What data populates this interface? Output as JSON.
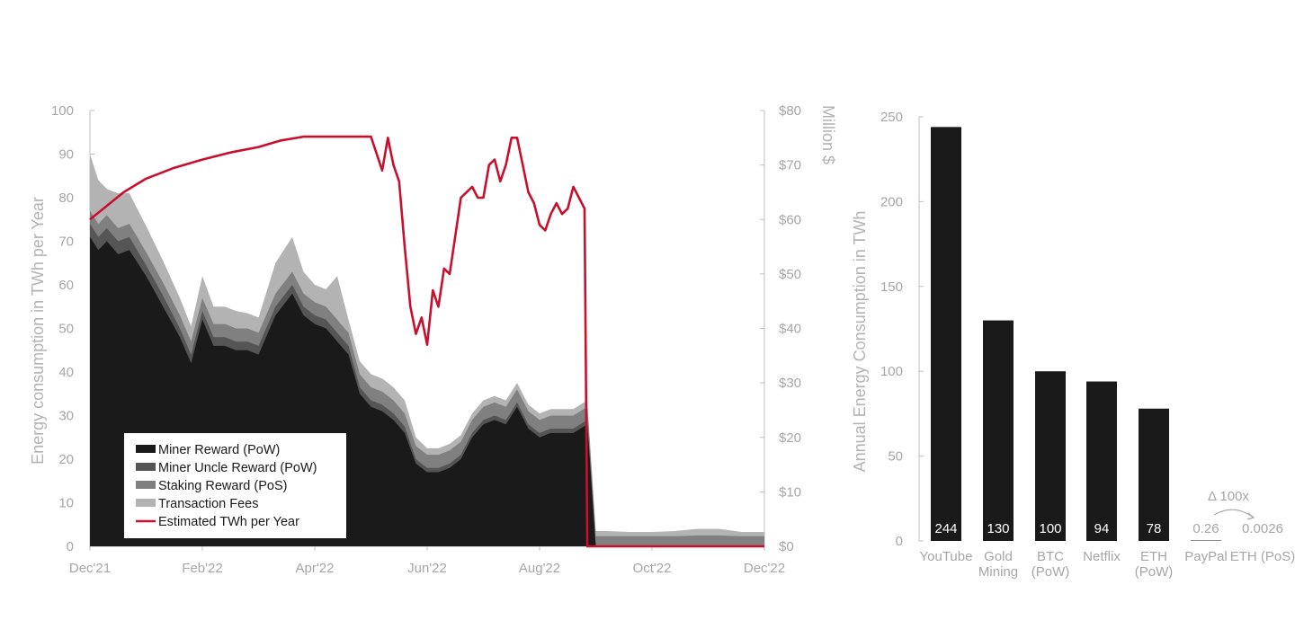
{
  "chart_data": [
    {
      "type": "area",
      "ylabel": "Energy consumption in TWh per Year",
      "y2label": "Million $",
      "ylim": [
        0,
        100
      ],
      "y2lim": [
        0,
        80
      ],
      "yticks": [
        0,
        10,
        20,
        30,
        40,
        50,
        60,
        70,
        80,
        90,
        100
      ],
      "y2ticks": [
        "$0",
        "$10",
        "$20",
        "$30",
        "$40",
        "$50",
        "$60",
        "$70",
        "$80"
      ],
      "xticks": [
        "Dec'21",
        "Feb'22",
        "Apr'22",
        "Jun'22",
        "Aug'22",
        "Oct'22",
        "Dec'22"
      ],
      "xlim": [
        0,
        12
      ],
      "legend_position": "bottom-left",
      "legend": [
        {
          "label": "Miner Reward (PoW)",
          "color": "#1a1a1a",
          "kind": "box"
        },
        {
          "label": "Miner Uncle Reward (PoW)",
          "color": "#555555",
          "kind": "box"
        },
        {
          "label": "Staking Reward (PoS)",
          "color": "#808080",
          "kind": "box"
        },
        {
          "label": "Transaction Fees",
          "color": "#b3b3b3",
          "kind": "box"
        },
        {
          "label": "Estimated TWh per Year",
          "color": "#c8102e",
          "kind": "line"
        }
      ],
      "x": [
        0,
        0.15,
        0.3,
        0.5,
        0.7,
        1.0,
        1.3,
        1.6,
        1.8,
        2.0,
        2.2,
        2.4,
        2.6,
        2.8,
        3.0,
        3.3,
        3.6,
        3.8,
        4.0,
        4.2,
        4.4,
        4.6,
        4.8,
        5.0,
        5.2,
        5.4,
        5.6,
        5.8,
        6.0,
        6.2,
        6.4,
        6.6,
        6.8,
        7.0,
        7.2,
        7.4,
        7.6,
        7.8,
        8.0,
        8.2,
        8.4,
        8.6,
        8.85,
        9.0,
        9.2,
        9.6,
        10.0,
        10.4,
        10.8,
        11.2,
        11.6,
        12.0
      ],
      "series": [
        {
          "name": "Miner Reward (PoW)",
          "color": "#1a1a1a",
          "values": [
            71,
            68,
            70,
            67,
            68,
            62,
            55,
            48,
            42,
            52,
            46,
            46,
            45,
            45,
            44,
            53,
            58,
            53,
            51,
            50,
            47,
            44,
            35,
            32,
            31,
            29,
            26,
            19,
            17,
            17,
            18,
            20,
            25,
            28,
            29,
            28,
            32,
            27,
            25,
            26,
            26,
            26,
            28,
            0,
            0,
            0,
            0,
            0,
            0,
            0,
            0,
            0
          ]
        },
        {
          "name": "Miner Uncle Reward (PoW)",
          "color": "#555555",
          "values": [
            3,
            3,
            3,
            3,
            3,
            2.5,
            2.5,
            2,
            2,
            2,
            2,
            2,
            2,
            2,
            2,
            2,
            2,
            2,
            2,
            2,
            2,
            2,
            1.5,
            1.5,
            1.5,
            1.5,
            1.5,
            1,
            1,
            1,
            1,
            1,
            1,
            1,
            1,
            1,
            1,
            1,
            1,
            1,
            1,
            1,
            1,
            0,
            0,
            0,
            0,
            0,
            0,
            0,
            0,
            0
          ]
        },
        {
          "name": "Staking Reward (PoS)",
          "color": "#808080",
          "values": [
            3,
            3,
            3,
            3,
            3,
            3,
            3,
            3,
            3,
            3,
            3,
            3,
            3,
            3,
            3,
            3,
            3,
            3,
            3,
            3,
            3,
            3,
            3,
            3,
            3,
            3,
            3,
            3,
            3,
            3,
            3,
            3,
            3,
            3,
            3,
            3,
            3,
            3,
            3,
            3,
            3,
            3,
            3,
            2.3,
            2.3,
            2.3,
            2.3,
            2.3,
            2.5,
            2.5,
            2.3,
            2.3
          ]
        },
        {
          "name": "Transaction Fees",
          "color": "#b3b3b3",
          "values": [
            13,
            10,
            6,
            8,
            7,
            6,
            5,
            4,
            3.5,
            5,
            4,
            4,
            4,
            3.5,
            3.5,
            7,
            8,
            5,
            4,
            4,
            10,
            3,
            3,
            3,
            3,
            3,
            3,
            2,
            1.5,
            1.5,
            1.5,
            1.5,
            1.5,
            1.5,
            1.5,
            1.5,
            1.5,
            1.5,
            1.5,
            1.5,
            1.5,
            1.5,
            1.5,
            1.2,
            1.2,
            1.0,
            1.0,
            1.2,
            1.5,
            1.5,
            1.0,
            1.0
          ]
        }
      ],
      "line": {
        "name": "Estimated TWh per Year",
        "color": "#c8102e",
        "axis": "right",
        "x": [
          0,
          0.3,
          0.6,
          1.0,
          1.5,
          2.0,
          2.5,
          3.0,
          3.4,
          3.8,
          4.2,
          4.6,
          5.0,
          5.2,
          5.3,
          5.4,
          5.5,
          5.6,
          5.7,
          5.8,
          5.9,
          6.0,
          6.1,
          6.2,
          6.3,
          6.4,
          6.5,
          6.6,
          6.7,
          6.8,
          6.9,
          7.0,
          7.1,
          7.2,
          7.3,
          7.4,
          7.5,
          7.6,
          7.7,
          7.8,
          7.9,
          8.0,
          8.1,
          8.2,
          8.3,
          8.4,
          8.5,
          8.6,
          8.7,
          8.8,
          8.85,
          8.9,
          8.95,
          9.0,
          12.0
        ],
        "values": [
          60,
          62.5,
          65,
          67.5,
          69.5,
          71,
          72.3,
          73.3,
          74.5,
          75.2,
          75.2,
          75.2,
          75.2,
          69,
          75,
          70,
          67,
          55,
          44,
          39,
          42,
          37,
          47,
          44,
          51,
          50,
          57,
          64,
          65,
          66,
          64,
          64,
          70,
          71,
          67,
          70,
          75,
          75,
          70,
          65,
          63,
          59,
          58,
          61,
          63,
          61,
          62,
          66,
          64,
          62,
          0,
          0,
          0,
          0,
          0
        ]
      }
    },
    {
      "type": "bar",
      "ylabel": "Annual Energy Consumption in TWh",
      "ylim": [
        0,
        250
      ],
      "yticks": [
        0,
        50,
        100,
        150,
        200,
        250
      ],
      "categories": [
        "YouTube",
        "Gold\nMining",
        "BTC\n(PoW)",
        "Netflix",
        "ETH\n(PoW)",
        "PayPal",
        "ETH (PoS)"
      ],
      "values": [
        244,
        130,
        100,
        94,
        78,
        0.26,
        0.0026
      ],
      "value_labels": [
        "244",
        "130",
        "100",
        "94",
        "78",
        "0.26",
        "0.0026"
      ],
      "annotation": "Δ 100x",
      "bar_color": "#1a1a1a"
    }
  ]
}
